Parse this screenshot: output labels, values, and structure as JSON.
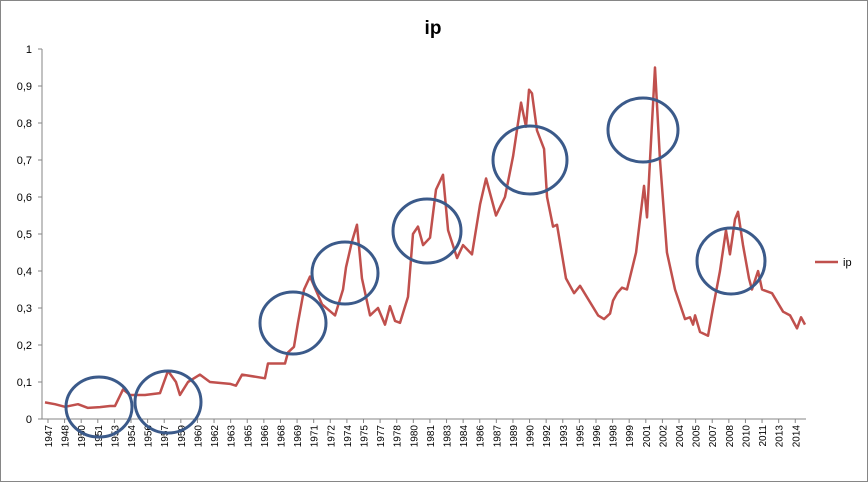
{
  "chart_data": {
    "type": "line",
    "title": "ip",
    "x": [
      1946.73,
      1947.63,
      1948.54,
      1949.71,
      1950.61,
      1951.7,
      1952.6,
      1953.05,
      1953.78,
      1954.41,
      1955.76,
      1957.12,
      1957.84,
      1958.56,
      1958.92,
      1959.65,
      1960.73,
      1961.63,
      1963.44,
      1963.98,
      1964.53,
      1966.6,
      1966.87,
      1968.41,
      1968.68,
      1969.22,
      1969.58,
      1970.13,
      1970.67,
      1971.75,
      1972.93,
      1973.65,
      1973.92,
      1974.46,
      1974.91,
      1975.36,
      1976.09,
      1976.81,
      1977.44,
      1977.89,
      1978.35,
      1978.8,
      1979.52,
      1979.97,
      1980.42,
      1980.88,
      1981.51,
      1982.05,
      1982.68,
      1983.14,
      1983.95,
      1984.49,
      1985.3,
      1986.03,
      1986.57,
      1987.47,
      1988.28,
      1989.01,
      1989.73,
      1990.18,
      1990.45,
      1990.72,
      1991.17,
      1991.81,
      1992.08,
      1992.62,
      1992.98,
      1993.79,
      1994.52,
      1995.06,
      1996.69,
      1997.23,
      1997.77,
      1998.04,
      1998.41,
      1998.85,
      1999.3,
      2000.12,
      2000.84,
      2001.11,
      2001.38,
      2001.83,
      2002.28,
      2002.91,
      2003.64,
      2004.54,
      2004.99,
      2005.27,
      2005.45,
      2005.9,
      2006.62,
      2007.07,
      2007.7,
      2008.24,
      2008.6,
      2009.06,
      2009.33,
      2009.78,
      2010.32,
      2010.59,
      2011.14,
      2011.5,
      2012.4,
      2013.4,
      2014.03,
      2014.66,
      2015.02,
      2015.38
    ],
    "series": [
      {
        "name": "ip",
        "color": "#c0504d",
        "values": [
          0.045,
          0.04,
          0.033,
          0.04,
          0.03,
          0.032,
          0.035,
          0.035,
          0.08,
          0.065,
          0.065,
          0.07,
          0.13,
          0.1,
          0.065,
          0.1,
          0.12,
          0.1,
          0.095,
          0.09,
          0.12,
          0.11,
          0.15,
          0.15,
          0.18,
          0.195,
          0.26,
          0.35,
          0.385,
          0.31,
          0.28,
          0.35,
          0.41,
          0.48,
          0.525,
          0.38,
          0.28,
          0.3,
          0.255,
          0.305,
          0.265,
          0.26,
          0.33,
          0.5,
          0.52,
          0.47,
          0.49,
          0.62,
          0.66,
          0.51,
          0.435,
          0.47,
          0.445,
          0.58,
          0.65,
          0.55,
          0.6,
          0.71,
          0.855,
          0.79,
          0.89,
          0.88,
          0.78,
          0.73,
          0.6,
          0.52,
          0.525,
          0.38,
          0.34,
          0.36,
          0.28,
          0.27,
          0.285,
          0.32,
          0.34,
          0.355,
          0.35,
          0.45,
          0.63,
          0.545,
          0.7,
          0.95,
          0.7,
          0.45,
          0.35,
          0.27,
          0.275,
          0.255,
          0.28,
          0.235,
          0.225,
          0.3,
          0.4,
          0.51,
          0.445,
          0.54,
          0.56,
          0.47,
          0.38,
          0.35,
          0.4,
          0.35,
          0.34,
          0.29,
          0.28,
          0.245,
          0.275,
          0.255
        ]
      }
    ],
    "xlim": [
      1946.46,
      2015.47
    ],
    "xticks": [
      1947,
      {
        "value": 1948.5,
        "label": "1948"
      },
      1950,
      {
        "value": 1951.5,
        "label": "1951"
      },
      1953,
      {
        "value": 1954.5,
        "label": "1954"
      },
      1956,
      {
        "value": 1957.5,
        "label": "1957"
      },
      1959,
      {
        "value": 1960.5,
        "label": "1960"
      },
      1962,
      {
        "value": 1963.5,
        "label": "1963"
      },
      1965,
      {
        "value": 1966.5,
        "label": "1966"
      },
      1968,
      {
        "value": 1969.5,
        "label": "1969"
      },
      1971,
      {
        "value": 1972.5,
        "label": "1972"
      },
      1974,
      {
        "value": 1975.5,
        "label": "1975"
      },
      1977,
      {
        "value": 1978.5,
        "label": "1978"
      },
      1980,
      {
        "value": 1981.5,
        "label": "1981"
      },
      1983,
      {
        "value": 1984.5,
        "label": "1984"
      },
      1986,
      {
        "value": 1987.5,
        "label": "1987"
      },
      1989,
      {
        "value": 1990.5,
        "label": "1990"
      },
      1992,
      {
        "value": 1993.5,
        "label": "1993"
      },
      1995,
      {
        "value": 1996.5,
        "label": "1996"
      },
      1998,
      {
        "value": 1999.5,
        "label": "1999"
      },
      2001,
      {
        "value": 2002.5,
        "label": "2002"
      },
      2004,
      {
        "value": 2005.5,
        "label": "2005"
      },
      2007,
      {
        "value": 2008.5,
        "label": "2008"
      },
      2010,
      {
        "value": 2011.5,
        "label": "2011"
      },
      2013,
      {
        "value": 2014.5,
        "label": "2014"
      }
    ],
    "ylim": [
      0,
      1
    ],
    "yticks": [
      0,
      {
        "value": 0.1,
        "label": "0,1"
      },
      {
        "value": 0.2,
        "label": "0,2"
      },
      {
        "value": 0.3,
        "label": "0,3"
      },
      {
        "value": 0.4,
        "label": "0,4"
      },
      {
        "value": 0.5,
        "label": "0,5"
      },
      {
        "value": 0.6,
        "label": "0,6"
      },
      {
        "value": 0.7,
        "label": "0,7"
      },
      {
        "value": 0.8,
        "label": "0,8"
      },
      {
        "value": 0.9,
        "label": "0,9"
      },
      1
    ],
    "grid": false,
    "legend": "right"
  }
}
